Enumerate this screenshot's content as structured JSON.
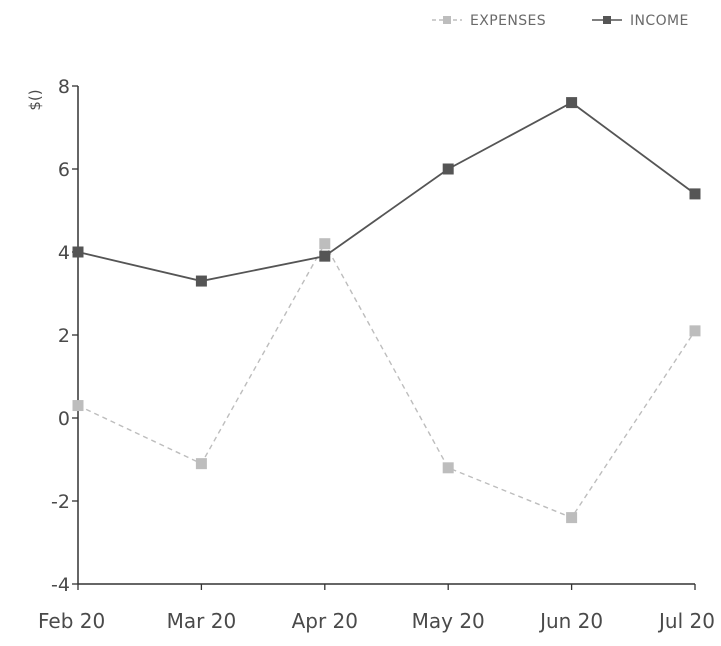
{
  "chart_data": {
    "type": "line",
    "title": "",
    "xlabel": "",
    "ylabel": "$()",
    "categories": [
      "Feb 20",
      "Mar 20",
      "Apr 20",
      "May 20",
      "Jun 20",
      "Jul 20"
    ],
    "ylim": [
      -4,
      8
    ],
    "yticks": [
      -4,
      -2,
      0,
      2,
      4,
      6,
      8
    ],
    "grid": false,
    "legend_position": "top-right",
    "series": [
      {
        "name": "EXPENSES",
        "values": [
          0.3,
          -1.1,
          4.2,
          -1.2,
          -2.4,
          2.1
        ],
        "color": "#bdbdbd",
        "line_style": "dashed",
        "marker": "square"
      },
      {
        "name": "INCOME",
        "values": [
          4.0,
          3.3,
          3.9,
          6.0,
          7.6,
          5.4
        ],
        "color": "#555555",
        "line_style": "solid",
        "marker": "square"
      }
    ]
  }
}
